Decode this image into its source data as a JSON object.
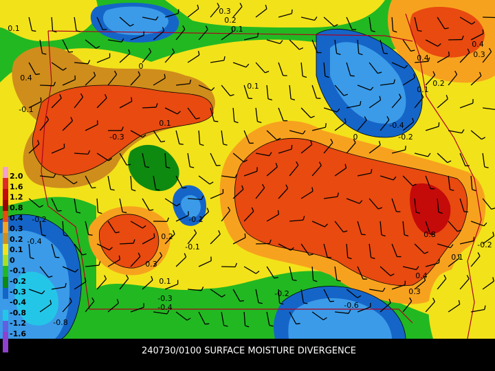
{
  "map": {
    "caption": "240730/0100 SURFACE MOISTURE DIVERGENCE",
    "scale_labels": [
      "2.0",
      "1.6",
      "1.2",
      "0.8",
      "0.4",
      "0.3",
      "0.2",
      "0.1",
      "0",
      "-0.1",
      "-0.2",
      "-0.3",
      "-0.4",
      "-0.8",
      "-1.2",
      "-1.6"
    ],
    "contour_labels": [
      "0.3",
      "0.2",
      "0.1",
      "0.1",
      "0.4",
      "-0.1",
      "-0.3",
      "0.1",
      "0",
      "0.1",
      "0.4",
      "0.3",
      "0.4",
      "0.2",
      "0.1",
      "-0.4",
      "-0.2",
      "0",
      "-0.2",
      "-0.4",
      "0.2",
      "-0.1",
      "0.3",
      "0.1",
      "-0.3",
      "-0.4",
      "-0.2",
      "-0.6",
      "-0.8",
      "0.8",
      "0.4",
      "0.3",
      "0.1",
      "-0.2",
      "-0.1"
    ]
  }
}
